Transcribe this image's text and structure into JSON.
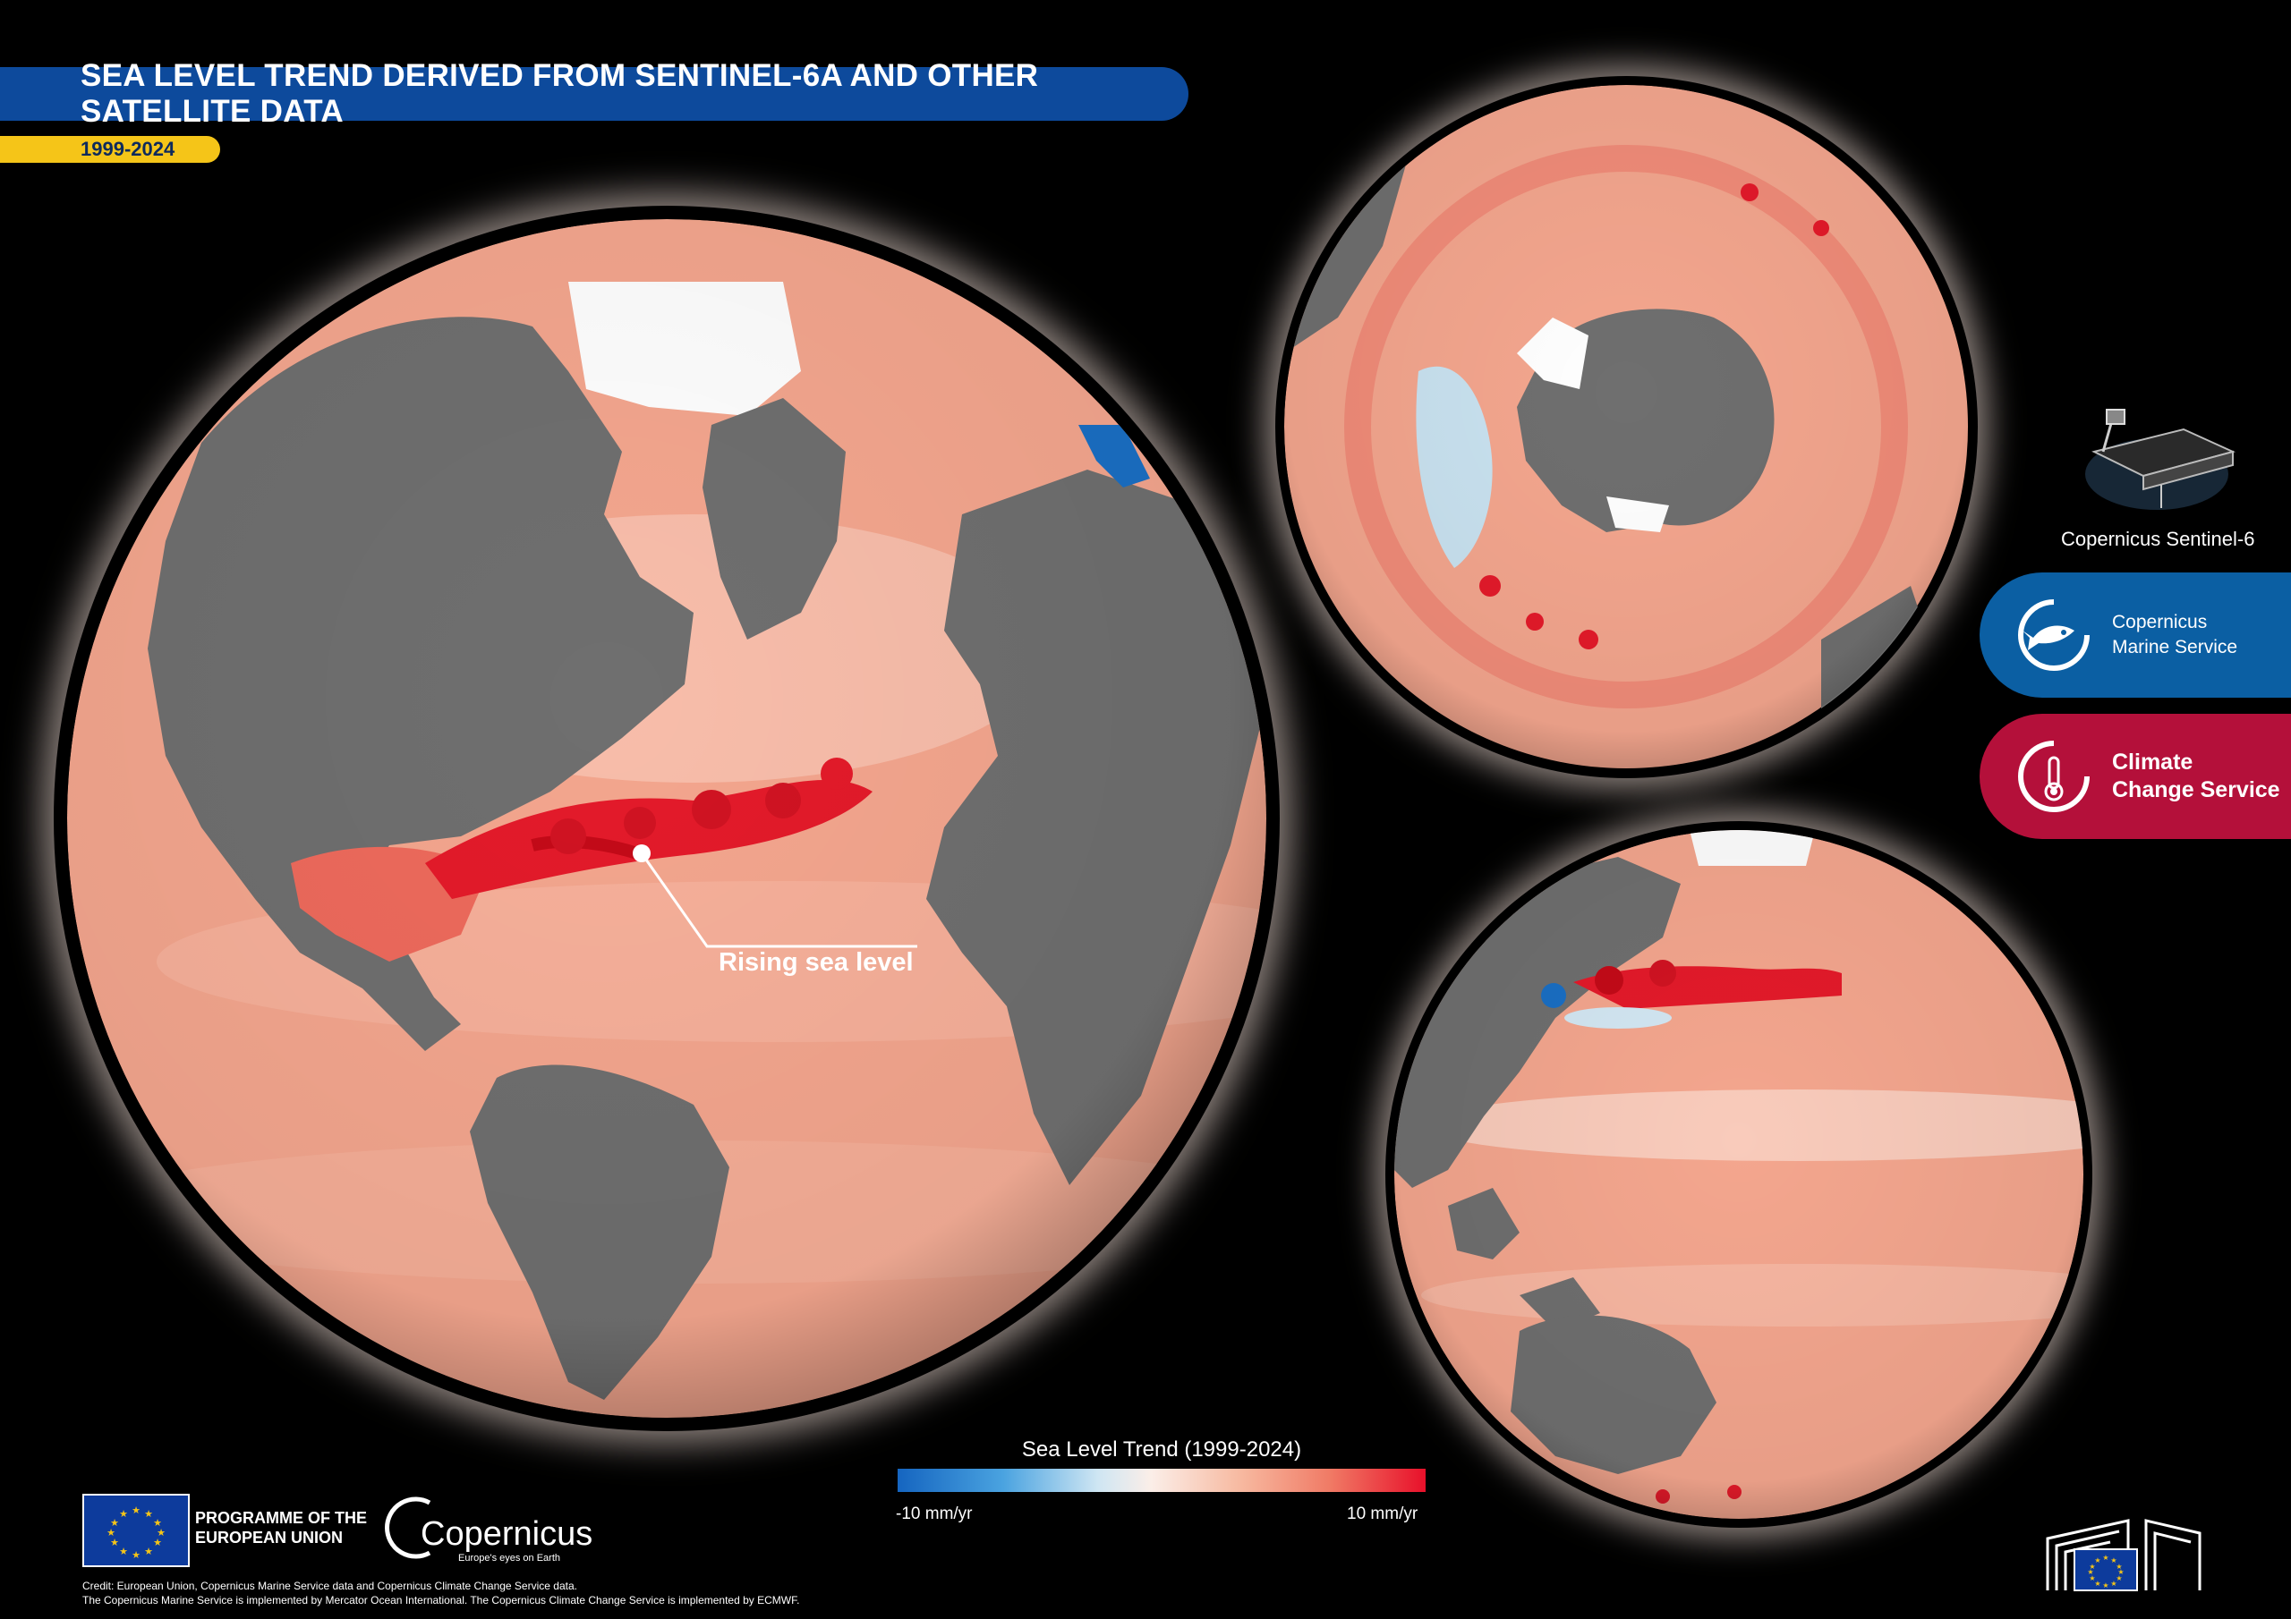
{
  "header": {
    "title": "SEA LEVEL TREND DERIVED FROM SENTINEL-6A AND OTHER SATELLITE DATA",
    "period": "1999-2024"
  },
  "map": {
    "annotation": "Rising sea level",
    "globes": [
      "Atlantic hemisphere",
      "Southern hemisphere",
      "Pacific hemisphere"
    ]
  },
  "satellite": {
    "label": "Copernicus Sentinel-6",
    "icon": "satellite-icon"
  },
  "services": [
    {
      "line1": "Copernicus",
      "line2": "Marine Service",
      "icon": "fish-wave-icon",
      "color": "#0b5fa3"
    },
    {
      "line1": "Climate",
      "line2": "Change Service",
      "icon": "thermometer-icon",
      "color": "#b4103a"
    }
  ],
  "legend": {
    "title": "Sea Level Trend (1999-2024)",
    "min_label": "-10 mm/yr",
    "max_label": "10 mm/yr",
    "min_value": -10,
    "max_value": 10,
    "unit": "mm/yr",
    "colors": [
      "#1565c0",
      "#cfe6f3",
      "#fbeee8",
      "#e8102a"
    ]
  },
  "footer": {
    "programme_line1": "PROGRAMME OF THE",
    "programme_line2": "EUROPEAN UNION",
    "copernicus_word": "Copernicus",
    "copernicus_tagline": "Europe's eyes on Earth",
    "credit_line1": "Credit: European Union, Copernicus Marine Service data and Copernicus Climate Change Service data.",
    "credit_line2": "The Copernicus Marine Service is implemented by Mercator Ocean International. The Copernicus Climate Change Service is implemented by ECMWF."
  },
  "colors": {
    "title_bar": "#0d4a9c",
    "year_bar": "#f5c518",
    "ocean_base": "#f4a68e",
    "land": "#6f6f6f",
    "ice": "#ffffff",
    "rising": "#e41a2a",
    "falling": "#1a6fc4"
  }
}
